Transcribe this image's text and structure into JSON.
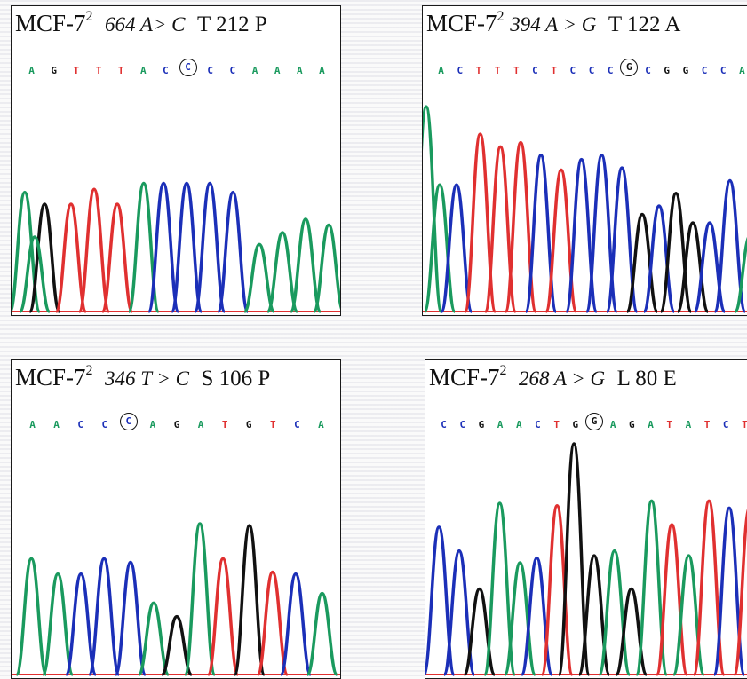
{
  "colors": {
    "A": "#1a9a5e",
    "C": "#1b2fb8",
    "G": "#111111",
    "T": "#e03030"
  },
  "panels": [
    {
      "cell_line": "MCF-7",
      "superscript": "2",
      "mutation": "664 A> C",
      "change": "T 212 P",
      "sequence": [
        "A",
        "G",
        "T",
        "T",
        "T",
        "A",
        "C",
        "C",
        "C",
        "C",
        "A",
        "A",
        "A",
        "A"
      ],
      "circled_index": 7,
      "peaks": [
        {
          "base": "A",
          "pos": 0.04,
          "h": 0.8
        },
        {
          "base": "G",
          "pos": 0.1,
          "h": 0.72
        },
        {
          "base": "A",
          "pos": 0.07,
          "h": 0.5
        },
        {
          "base": "T",
          "pos": 0.18,
          "h": 0.72
        },
        {
          "base": "T",
          "pos": 0.25,
          "h": 0.82
        },
        {
          "base": "T",
          "pos": 0.32,
          "h": 0.72
        },
        {
          "base": "A",
          "pos": 0.4,
          "h": 0.86
        },
        {
          "base": "C",
          "pos": 0.46,
          "h": 0.86
        },
        {
          "base": "C",
          "pos": 0.53,
          "h": 0.86
        },
        {
          "base": "C",
          "pos": 0.6,
          "h": 0.86
        },
        {
          "base": "C",
          "pos": 0.67,
          "h": 0.8
        },
        {
          "base": "A",
          "pos": 0.75,
          "h": 0.45
        },
        {
          "base": "A",
          "pos": 0.82,
          "h": 0.53
        },
        {
          "base": "A",
          "pos": 0.89,
          "h": 0.62
        },
        {
          "base": "A",
          "pos": 0.96,
          "h": 0.58
        }
      ]
    },
    {
      "cell_line": "MCF-7",
      "superscript": "2",
      "mutation": "394 A > G",
      "change": "T 122 A",
      "sequence": [
        "A",
        "C",
        "T",
        "T",
        "T",
        "C",
        "T",
        "C",
        "C",
        "C",
        "G",
        "C",
        "G",
        "G",
        "C",
        "C",
        "A"
      ],
      "circled_index": 10,
      "peaks": [
        {
          "base": "A",
          "pos": 0.01,
          "h": 0.97
        },
        {
          "base": "A",
          "pos": 0.05,
          "h": 0.6
        },
        {
          "base": "C",
          "pos": 0.1,
          "h": 0.6
        },
        {
          "base": "T",
          "pos": 0.17,
          "h": 0.84
        },
        {
          "base": "T",
          "pos": 0.23,
          "h": 0.78
        },
        {
          "base": "T",
          "pos": 0.29,
          "h": 0.8
        },
        {
          "base": "C",
          "pos": 0.35,
          "h": 0.74
        },
        {
          "base": "T",
          "pos": 0.41,
          "h": 0.67
        },
        {
          "base": "C",
          "pos": 0.47,
          "h": 0.72
        },
        {
          "base": "C",
          "pos": 0.53,
          "h": 0.74
        },
        {
          "base": "C",
          "pos": 0.59,
          "h": 0.68
        },
        {
          "base": "G",
          "pos": 0.65,
          "h": 0.46
        },
        {
          "base": "C",
          "pos": 0.7,
          "h": 0.5
        },
        {
          "base": "G",
          "pos": 0.75,
          "h": 0.56
        },
        {
          "base": "G",
          "pos": 0.8,
          "h": 0.42
        },
        {
          "base": "C",
          "pos": 0.85,
          "h": 0.42
        },
        {
          "base": "C",
          "pos": 0.91,
          "h": 0.62
        },
        {
          "base": "A",
          "pos": 0.97,
          "h": 0.36
        }
      ]
    },
    {
      "cell_line": "MCF-7",
      "superscript": "2",
      "mutation": "346 T > C",
      "change": "S 106 P",
      "sequence": [
        "A",
        "A",
        "C",
        "C",
        "C",
        "A",
        "G",
        "A",
        "T",
        "G",
        "T",
        "C",
        "A"
      ],
      "circled_index": 4,
      "peaks": [
        {
          "base": "A",
          "pos": 0.06,
          "h": 0.6
        },
        {
          "base": "A",
          "pos": 0.14,
          "h": 0.52
        },
        {
          "base": "C",
          "pos": 0.21,
          "h": 0.52
        },
        {
          "base": "C",
          "pos": 0.28,
          "h": 0.6
        },
        {
          "base": "C",
          "pos": 0.36,
          "h": 0.58
        },
        {
          "base": "A",
          "pos": 0.43,
          "h": 0.37
        },
        {
          "base": "G",
          "pos": 0.5,
          "h": 0.3
        },
        {
          "base": "A",
          "pos": 0.57,
          "h": 0.78
        },
        {
          "base": "T",
          "pos": 0.64,
          "h": 0.6
        },
        {
          "base": "G",
          "pos": 0.72,
          "h": 0.77
        },
        {
          "base": "T",
          "pos": 0.79,
          "h": 0.53
        },
        {
          "base": "C",
          "pos": 0.86,
          "h": 0.52
        },
        {
          "base": "A",
          "pos": 0.94,
          "h": 0.42
        }
      ]
    },
    {
      "cell_line": "MCF-7",
      "superscript": "2",
      "mutation": "268 A > G",
      "change": "L 80 E",
      "sequence": [
        "C",
        "C",
        "G",
        "A",
        "A",
        "C",
        "T",
        "G",
        "G",
        "A",
        "G",
        "A",
        "T",
        "A",
        "T",
        "C",
        "T"
      ],
      "circled_index": 8,
      "peaks": [
        {
          "base": "C",
          "pos": 0.04,
          "h": 0.62
        },
        {
          "base": "C",
          "pos": 0.1,
          "h": 0.52
        },
        {
          "base": "G",
          "pos": 0.16,
          "h": 0.36
        },
        {
          "base": "A",
          "pos": 0.22,
          "h": 0.72
        },
        {
          "base": "A",
          "pos": 0.28,
          "h": 0.47
        },
        {
          "base": "C",
          "pos": 0.33,
          "h": 0.49
        },
        {
          "base": "T",
          "pos": 0.39,
          "h": 0.71
        },
        {
          "base": "G",
          "pos": 0.44,
          "h": 0.97
        },
        {
          "base": "G",
          "pos": 0.5,
          "h": 0.5
        },
        {
          "base": "A",
          "pos": 0.56,
          "h": 0.52
        },
        {
          "base": "G",
          "pos": 0.61,
          "h": 0.36
        },
        {
          "base": "A",
          "pos": 0.67,
          "h": 0.73
        },
        {
          "base": "T",
          "pos": 0.73,
          "h": 0.63
        },
        {
          "base": "A",
          "pos": 0.78,
          "h": 0.5
        },
        {
          "base": "T",
          "pos": 0.84,
          "h": 0.73
        },
        {
          "base": "C",
          "pos": 0.9,
          "h": 0.7
        },
        {
          "base": "T",
          "pos": 0.96,
          "h": 0.7
        }
      ]
    }
  ]
}
